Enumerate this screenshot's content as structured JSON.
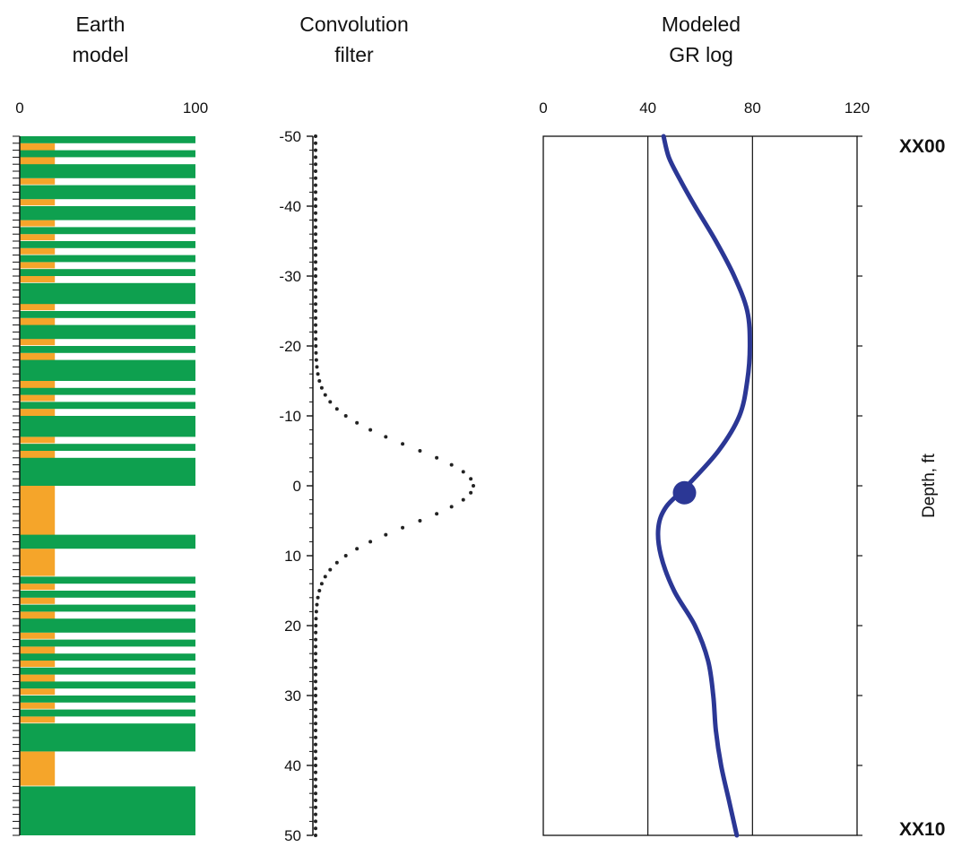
{
  "chart_data": [
    {
      "type": "bar",
      "panel": "earth-model",
      "title_lines": [
        "Earth",
        "model"
      ],
      "xticks": [
        "0",
        "100"
      ],
      "xlim": [
        0,
        100
      ],
      "ylim": [
        -50,
        50
      ],
      "colors": {
        "shale": "#f5a52a",
        "sand": "#0ea04f"
      },
      "shale_bands": [
        [
          -50,
          -49
        ],
        [
          -49,
          -45
        ],
        [
          -45,
          -44
        ],
        [
          -44,
          -43
        ],
        [
          -43,
          -41
        ],
        [
          -41,
          -40
        ],
        [
          -40,
          -38
        ],
        [
          -38,
          -37
        ],
        [
          -37,
          -36
        ],
        [
          -36,
          -35
        ],
        [
          -35,
          -34
        ],
        [
          -34,
          -33
        ],
        [
          -33,
          -32
        ],
        [
          -32,
          -31
        ],
        [
          -31,
          -30
        ],
        [
          -30,
          -29
        ],
        [
          -29,
          -25
        ],
        [
          -25,
          -24
        ],
        [
          -24,
          -20
        ],
        [
          -20,
          -19
        ],
        [
          -19,
          -15
        ],
        [
          -15,
          -13
        ],
        [
          -13,
          -12
        ],
        [
          -12,
          -11
        ],
        [
          -11,
          -7
        ],
        [
          -7,
          -6
        ],
        [
          -6,
          -1
        ],
        [
          -1,
          8
        ],
        [
          8,
          9
        ],
        [
          9,
          13
        ],
        [
          13,
          14
        ],
        [
          14,
          15
        ],
        [
          15,
          16
        ],
        [
          16,
          17
        ],
        [
          17,
          18
        ],
        [
          18,
          21
        ],
        [
          21,
          22
        ],
        [
          22,
          23
        ],
        [
          23,
          25
        ],
        [
          25,
          26
        ],
        [
          26,
          27
        ],
        [
          27,
          29
        ],
        [
          29,
          30
        ],
        [
          30,
          31
        ],
        [
          31,
          32
        ],
        [
          32,
          33
        ],
        [
          33,
          34
        ],
        [
          34,
          35
        ],
        [
          35,
          38
        ],
        [
          38,
          43
        ],
        [
          43,
          50
        ]
      ],
      "sand_bands": [
        [
          -50,
          -49
        ],
        [
          -48,
          -47
        ],
        [
          -46,
          -44
        ],
        [
          -43,
          -41
        ],
        [
          -40,
          -38
        ],
        [
          -37,
          -36
        ],
        [
          -35,
          -34
        ],
        [
          -33,
          -32
        ],
        [
          -31,
          -30
        ],
        [
          -29,
          -26
        ],
        [
          -25,
          -24
        ],
        [
          -23,
          -21
        ],
        [
          -20,
          -19
        ],
        [
          -18,
          -15
        ],
        [
          -14,
          -13
        ],
        [
          -12,
          -11
        ],
        [
          -10,
          -7
        ],
        [
          -6,
          -5
        ],
        [
          -4,
          0
        ],
        [
          7,
          9
        ],
        [
          13,
          14
        ],
        [
          15,
          16
        ],
        [
          17,
          18
        ],
        [
          19,
          21
        ],
        [
          22,
          23
        ],
        [
          24,
          25
        ],
        [
          26,
          27
        ],
        [
          28,
          29
        ],
        [
          30,
          31
        ],
        [
          32,
          33
        ],
        [
          34,
          38
        ],
        [
          43,
          50
        ]
      ]
    },
    {
      "type": "scatter",
      "panel": "convolution-filter",
      "title_lines": [
        "Convolution",
        "filter"
      ],
      "yticks": [
        "-50",
        "-40",
        "-30",
        "-20",
        "-10",
        "0",
        "10",
        "20",
        "30",
        "40",
        "50"
      ],
      "ylim": [
        -50,
        50
      ],
      "x_relative": [
        0,
        1
      ],
      "curve": "gaussian",
      "peak_position": 0,
      "sigma": 5.5,
      "point_spacing": 1,
      "color": "#222222"
    },
    {
      "type": "line",
      "panel": "modeled-gr-log",
      "title_lines": [
        "Modeled",
        "GR log"
      ],
      "xticks": [
        "0",
        "40",
        "80",
        "120"
      ],
      "xlim": [
        0,
        120
      ],
      "vertical_gridlines": [
        40,
        80
      ],
      "ylim": [
        0,
        10
      ],
      "ylabel": "Depth, ft",
      "top_depth_label": "XX00",
      "bottom_depth_label": "XX10",
      "color": "#2b3795",
      "series": [
        {
          "depth": [
            0,
            0.3,
            0.6,
            1.0,
            1.5,
            2.0,
            2.5,
            3.0,
            3.5,
            4.0,
            4.5,
            5.0,
            5.3,
            5.6,
            6.0,
            6.5,
            7.0,
            7.5,
            8.0,
            8.5,
            9.0,
            9.5,
            10.0
          ],
          "gr": [
            46,
            48,
            52,
            58,
            66,
            73,
            78,
            79,
            78,
            75,
            67,
            55,
            47,
            44,
            45,
            50,
            58,
            63,
            65,
            66,
            68,
            71,
            74
          ]
        }
      ],
      "marker": {
        "depth": 5.1,
        "gr": 54
      }
    }
  ]
}
